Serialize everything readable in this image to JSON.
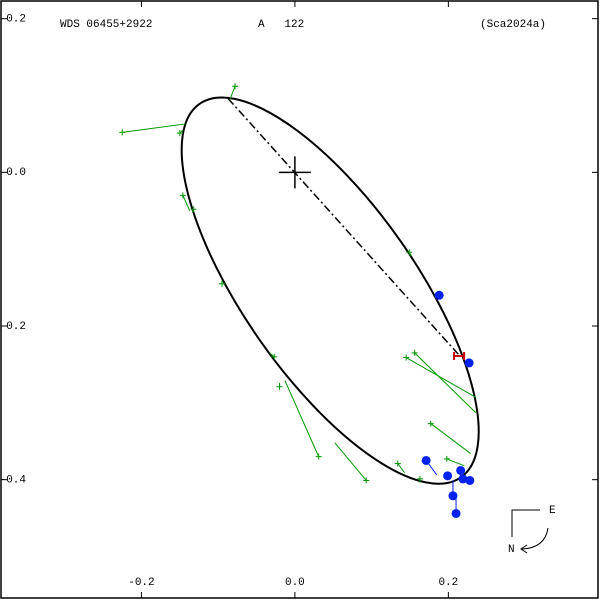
{
  "chart_data": {
    "type": "orbit",
    "header": {
      "left": "WDS 06455+2922",
      "middle": "A   122",
      "right": "(Sca2024a)"
    },
    "xlim": [
      -0.383,
      0.395
    ],
    "ylim": [
      -0.554,
      0.223
    ],
    "xticks": [
      {
        "value": -0.2,
        "label": "-0.2"
      },
      {
        "value": 0,
        "label": "0.0"
      },
      {
        "value": 0.2,
        "label": "0.2"
      }
    ],
    "yticks": [
      {
        "value": 0.2,
        "label": "0.2"
      },
      {
        "value": 0,
        "label": "0.0"
      },
      {
        "value": -0.2,
        "label": "-0.2"
      },
      {
        "value": -0.4,
        "label": "-0.4"
      }
    ],
    "orbit": {
      "center_x": 0.046,
      "center_y": -0.154,
      "a": 0.297,
      "b": 0.112,
      "angle": -55,
      "color": "#000000"
    },
    "node_line": {
      "x": [
        -0.087,
        0.215
      ],
      "y": [
        0.096,
        -0.239
      ]
    },
    "primary": {
      "x": 0,
      "y": 0
    },
    "periastron": {
      "x": 0.214,
      "y": -0.239,
      "color": "#cc0000"
    },
    "markers": [
      {
        "symbol": "plus",
        "color": "#009900",
        "x": [
          -0.225,
          -0.15,
          -0.078,
          -0.146,
          -0.132,
          -0.095,
          -0.027,
          0.031,
          -0.02,
          0.093,
          0.149,
          0.156,
          0.145,
          0.177,
          0.198,
          0.134,
          0.163
        ],
        "y": [
          0.052,
          0.051,
          0.112,
          -0.03,
          -0.048,
          -0.145,
          -0.24,
          -0.37,
          -0.279,
          -0.401,
          -0.104,
          -0.235,
          -0.241,
          -0.327,
          -0.373,
          -0.379,
          -0.399
        ],
        "end_x": [
          -0.143,
          -0.146,
          -0.085,
          -0.137,
          -0.134,
          -0.095,
          -0.033,
          -0.013,
          -0.02,
          0.052,
          0.152,
          0.236,
          0.236,
          0.229,
          0.221,
          0.143,
          0.163
        ],
        "end_y": [
          0.063,
          0.055,
          0.094,
          -0.05,
          -0.052,
          -0.141,
          -0.235,
          -0.271,
          -0.274,
          -0.352,
          -0.109,
          -0.313,
          -0.293,
          -0.366,
          -0.382,
          -0.391,
          -0.404
        ]
      },
      {
        "symbol": "dot",
        "color": "#0022ee",
        "x": [
          0.188,
          0.227,
          0.171,
          0.199,
          0.216,
          0.219,
          0.228,
          0.206,
          0.21
        ],
        "y": [
          -0.16,
          -0.248,
          -0.375,
          -0.395,
          -0.388,
          -0.399,
          -0.401,
          -0.421,
          -0.444
        ],
        "end_x": [
          0.191,
          0.229,
          0.185,
          0.199,
          0.212,
          0.215,
          0.223,
          0.206,
          0.21
        ],
        "end_y": [
          -0.163,
          -0.248,
          -0.394,
          -0.399,
          -0.391,
          -0.393,
          -0.396,
          -0.401,
          -0.421
        ]
      }
    ],
    "compass": {
      "east": "E",
      "north": "N"
    }
  }
}
